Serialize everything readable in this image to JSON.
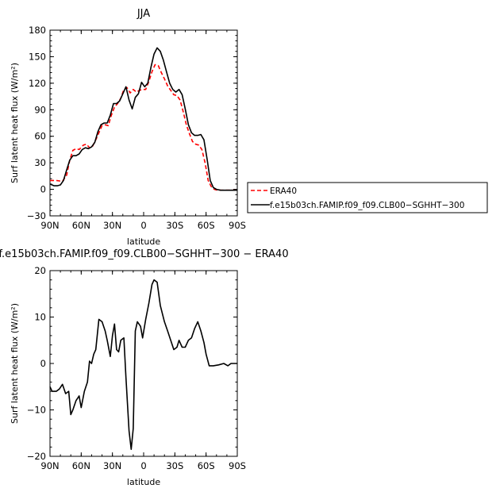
{
  "chart_data": [
    {
      "type": "line",
      "title": "JJA",
      "xlabel": "latitude",
      "ylabel": "Surf latent heat flux (W/m²)",
      "xlim": [
        90,
        -90
      ],
      "ylim": [
        -30,
        180
      ],
      "xticks": [
        90,
        60,
        30,
        0,
        -30,
        -60,
        -90
      ],
      "xtick_labels": [
        "90N",
        "60N",
        "30N",
        "0",
        "30S",
        "60S",
        "90S"
      ],
      "yticks": [
        -30,
        0,
        30,
        60,
        90,
        120,
        150,
        180
      ],
      "ytick_labels": [
        "−30",
        "0",
        "30",
        "60",
        "90",
        "120",
        "150",
        "180"
      ],
      "legend_position": "right",
      "series": [
        {
          "name": "ERA40",
          "color": "#ff0000",
          "dash": "dashed",
          "points": [
            [
              90,
              10
            ],
            [
              84,
              10
            ],
            [
              78,
              9
            ],
            [
              74,
              16
            ],
            [
              71,
              33
            ],
            [
              68,
              44
            ],
            [
              65,
              46
            ],
            [
              62,
              45
            ],
            [
              58,
              50
            ],
            [
              55,
              51
            ],
            [
              52,
              47
            ],
            [
              49,
              49
            ],
            [
              46,
              56
            ],
            [
              43,
              64
            ],
            [
              40,
              72
            ],
            [
              37,
              73
            ],
            [
              34,
              72
            ],
            [
              31,
              84
            ],
            [
              28,
              93
            ],
            [
              25,
              97
            ],
            [
              22,
              103
            ],
            [
              19,
              113
            ],
            [
              16,
              115
            ],
            [
              13,
              109
            ],
            [
              10,
              113
            ],
            [
              7,
              110
            ],
            [
              4,
              112
            ],
            [
              1,
              113
            ],
            [
              -2,
              113
            ],
            [
              -5,
              122
            ],
            [
              -8,
              133
            ],
            [
              -11,
              141
            ],
            [
              -14,
              140
            ],
            [
              -17,
              132
            ],
            [
              -20,
              125
            ],
            [
              -23,
              117
            ],
            [
              -26,
              112
            ],
            [
              -29,
              107
            ],
            [
              -32,
              106
            ],
            [
              -35,
              101
            ],
            [
              -38,
              88
            ],
            [
              -41,
              73
            ],
            [
              -44,
              63
            ],
            [
              -47,
              54
            ],
            [
              -50,
              51
            ],
            [
              -53,
              50
            ],
            [
              -56,
              45
            ],
            [
              -59,
              30
            ],
            [
              -62,
              10
            ],
            [
              -65,
              3
            ],
            [
              -68,
              0
            ],
            [
              -71,
              -1
            ],
            [
              -75,
              -1
            ],
            [
              -80,
              -1
            ],
            [
              -85,
              -1
            ],
            [
              -90,
              -1
            ]
          ]
        },
        {
          "name": "f.e15b03ch.FAMIP.f09_f09.CLB00−SGHHT−300",
          "color": "#000000",
          "dash": "solid",
          "points": [
            [
              90,
              6
            ],
            [
              86,
              4
            ],
            [
              83,
              4
            ],
            [
              80,
              5
            ],
            [
              77,
              10
            ],
            [
              74,
              22
            ],
            [
              71,
              33
            ],
            [
              68,
              38
            ],
            [
              65,
              38
            ],
            [
              62,
              40
            ],
            [
              59,
              45
            ],
            [
              56,
              47
            ],
            [
              53,
              46
            ],
            [
              50,
              48
            ],
            [
              47,
              53
            ],
            [
              44,
              65
            ],
            [
              41,
              73
            ],
            [
              38,
              75
            ],
            [
              35,
              75
            ],
            [
              32,
              84
            ],
            [
              29,
              97
            ],
            [
              26,
              97
            ],
            [
              23,
              100
            ],
            [
              20,
              108
            ],
            [
              17,
              116
            ],
            [
              14,
              101
            ],
            [
              11,
              91
            ],
            [
              8,
              104
            ],
            [
              5,
              108
            ],
            [
              2,
              121
            ],
            [
              -1,
              116
            ],
            [
              -4,
              120
            ],
            [
              -7,
              138
            ],
            [
              -10,
              153
            ],
            [
              -13,
              160
            ],
            [
              -16,
              156
            ],
            [
              -19,
              146
            ],
            [
              -22,
              133
            ],
            [
              -25,
              120
            ],
            [
              -28,
              113
            ],
            [
              -31,
              110
            ],
            [
              -34,
              113
            ],
            [
              -37,
              107
            ],
            [
              -40,
              91
            ],
            [
              -43,
              73
            ],
            [
              -46,
              64
            ],
            [
              -49,
              61
            ],
            [
              -52,
              61
            ],
            [
              -55,
              62
            ],
            [
              -58,
              56
            ],
            [
              -61,
              34
            ],
            [
              -64,
              10
            ],
            [
              -67,
              2
            ],
            [
              -70,
              0
            ],
            [
              -74,
              -1
            ],
            [
              -80,
              -1
            ],
            [
              -85,
              -1
            ],
            [
              -90,
              -1
            ]
          ]
        }
      ]
    },
    {
      "type": "line",
      "title": "f.e15b03ch.FAMIP.f09_f09.CLB00−SGHHT−300 − ERA40",
      "xlabel": "latitude",
      "ylabel": "Surf latent heat flux (W/m²)",
      "xlim": [
        90,
        -90
      ],
      "ylim": [
        -20,
        20
      ],
      "xticks": [
        90,
        60,
        30,
        0,
        -30,
        -60,
        -90
      ],
      "xtick_labels": [
        "90N",
        "60N",
        "30N",
        "0",
        "30S",
        "60S",
        "90S"
      ],
      "yticks": [
        -20,
        -10,
        0,
        10,
        20
      ],
      "ytick_labels": [
        "−20",
        "−10",
        "0",
        "10",
        "20"
      ],
      "series": [
        {
          "color": "#000000",
          "dash": "solid",
          "points": [
            [
              90,
              -5
            ],
            [
              88,
              -6
            ],
            [
              84,
              -6
            ],
            [
              81,
              -5.5
            ],
            [
              78,
              -4.5
            ],
            [
              75,
              -6.5
            ],
            [
              72,
              -6
            ],
            [
              70,
              -11
            ],
            [
              68,
              -10
            ],
            [
              65,
              -8
            ],
            [
              62,
              -7
            ],
            [
              60,
              -9.5
            ],
            [
              57,
              -6
            ],
            [
              54,
              -4
            ],
            [
              52,
              0.5
            ],
            [
              50,
              0
            ],
            [
              48,
              2
            ],
            [
              46,
              3
            ],
            [
              43,
              9.5
            ],
            [
              40,
              9
            ],
            [
              37,
              7
            ],
            [
              35,
              5
            ],
            [
              32,
              1.5
            ],
            [
              30,
              6
            ],
            [
              28,
              8.5
            ],
            [
              26,
              3
            ],
            [
              24,
              2.5
            ],
            [
              22,
              5
            ],
            [
              19,
              5.5
            ],
            [
              17,
              -3
            ],
            [
              14,
              -14.5
            ],
            [
              12,
              -18.5
            ],
            [
              10,
              -14
            ],
            [
              8,
              7
            ],
            [
              6,
              9
            ],
            [
              3,
              8
            ],
            [
              1,
              5.5
            ],
            [
              -2,
              9.5
            ],
            [
              -5,
              13
            ],
            [
              -8,
              17
            ],
            [
              -10,
              18
            ],
            [
              -13,
              17.5
            ],
            [
              -16,
              12.5
            ],
            [
              -20,
              9
            ],
            [
              -23,
              7
            ],
            [
              -26,
              5
            ],
            [
              -29,
              3
            ],
            [
              -32,
              3.5
            ],
            [
              -34,
              5
            ],
            [
              -37,
              3.5
            ],
            [
              -40,
              3.5
            ],
            [
              -43,
              5
            ],
            [
              -46,
              5.5
            ],
            [
              -49,
              7.5
            ],
            [
              -52,
              9
            ],
            [
              -55,
              7
            ],
            [
              -58,
              4.5
            ],
            [
              -60,
              2
            ],
            [
              -63,
              -0.5
            ],
            [
              -67,
              -0.5
            ],
            [
              -72,
              -0.3
            ],
            [
              -77,
              0
            ],
            [
              -81,
              -0.5
            ],
            [
              -84,
              0
            ],
            [
              -87,
              0
            ],
            [
              -90,
              0
            ]
          ]
        }
      ]
    }
  ]
}
